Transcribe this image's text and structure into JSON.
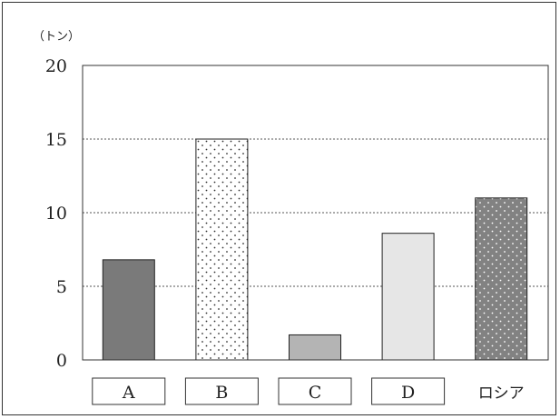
{
  "chart_data": {
    "type": "bar",
    "unit_label": "（トン）",
    "categories": [
      "A",
      "B",
      "C",
      "D",
      "ロシア"
    ],
    "boxed_categories": [
      true,
      true,
      true,
      true,
      false
    ],
    "values": [
      6.8,
      15.0,
      1.7,
      8.6,
      11.0
    ],
    "ylim": [
      0,
      20
    ],
    "yticks": [
      0,
      5,
      10,
      15,
      20
    ],
    "grid": "dotted horizontal at 5, 10, 15",
    "bar_styles": [
      {
        "fill": "#7a7a7a",
        "pattern": "none"
      },
      {
        "fill": "#ffffff",
        "pattern": "dots-dark"
      },
      {
        "fill": "#b4b4b4",
        "pattern": "none"
      },
      {
        "fill": "#e6e6e6",
        "pattern": "none"
      },
      {
        "fill": "#828282",
        "pattern": "dots-light"
      }
    ]
  }
}
